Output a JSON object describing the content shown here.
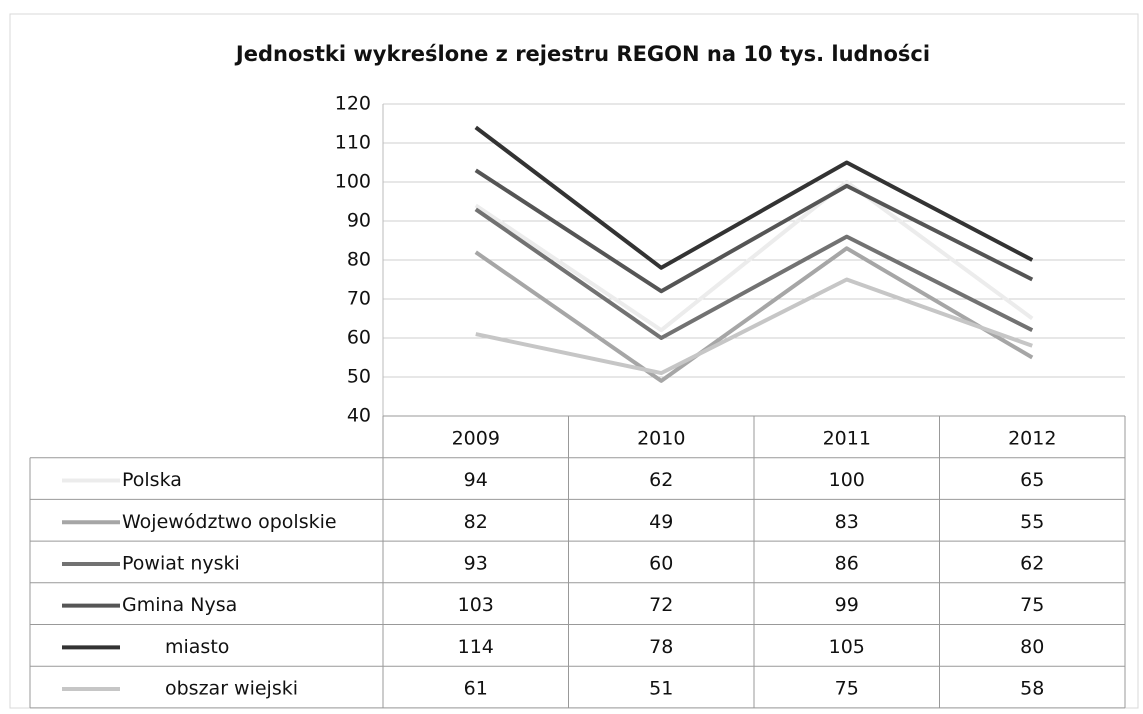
{
  "chart_data": {
    "type": "line",
    "title": "Jednostki wykreślone z rejestru REGON na 10 tys. ludności",
    "categories": [
      "2009",
      "2010",
      "2011",
      "2012"
    ],
    "series": [
      {
        "name": "Polska",
        "color": "#ececec",
        "values": [
          94,
          62,
          100,
          65
        ]
      },
      {
        "name": "Województwo opolskie",
        "color": "#a6a6a6",
        "values": [
          82,
          49,
          83,
          55
        ]
      },
      {
        "name": "Powiat nyski",
        "color": "#727272",
        "values": [
          93,
          60,
          86,
          62
        ]
      },
      {
        "name": "Gmina Nysa",
        "color": "#555555",
        "values": [
          103,
          72,
          99,
          75
        ]
      },
      {
        "name": "miasto",
        "color": "#333333",
        "values": [
          114,
          78,
          105,
          80
        ]
      },
      {
        "name": "obszar wiejski",
        "color": "#c6c6c6",
        "values": [
          61,
          51,
          75,
          58
        ]
      }
    ],
    "ylim": [
      40,
      120
    ],
    "yticks": [
      40,
      50,
      60,
      70,
      80,
      90,
      100,
      110,
      120
    ],
    "grid": true
  }
}
